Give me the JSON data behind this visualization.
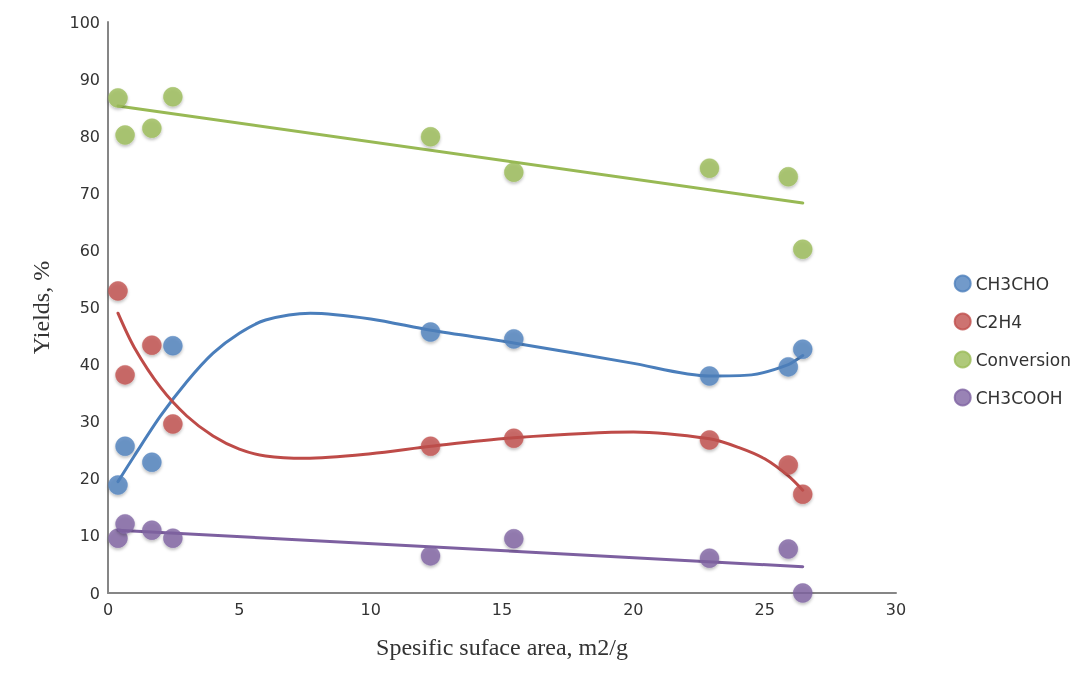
{
  "chart_data": {
    "type": "scatter",
    "xlabel": "Spesific suface area, m2/g",
    "ylabel": "Yields, %",
    "xlim": [
      0,
      30
    ],
    "xticks": [
      0,
      5,
      10,
      15,
      20,
      25,
      30
    ],
    "ylim": [
      0,
      100
    ],
    "yticks": [
      0,
      10,
      20,
      30,
      40,
      50,
      60,
      70,
      80,
      90,
      100
    ],
    "grid": false,
    "legend": "right",
    "marker": "circle",
    "series": [
      {
        "name": "CH3CHO",
        "color": "#4f81bd",
        "x": [
          0.38,
          0.65,
          1.67,
          2.47,
          12.28,
          15.45,
          22.9,
          25.9,
          26.45
        ],
        "values": [
          18.9,
          25.7,
          22.9,
          43.3,
          45.7,
          44.5,
          38.0,
          39.6,
          42.7
        ]
      },
      {
        "name": "C2H4",
        "color": "#c0504d",
        "x": [
          0.38,
          0.65,
          1.67,
          2.47,
          12.28,
          15.45,
          22.9,
          25.9,
          26.45
        ],
        "values": [
          52.9,
          38.2,
          43.4,
          29.6,
          25.7,
          27.1,
          26.8,
          22.4,
          17.3
        ]
      },
      {
        "name": "Conversion",
        "color": "#9bbb59",
        "x": [
          0.38,
          0.65,
          1.67,
          2.47,
          12.28,
          15.45,
          22.9,
          25.9,
          26.45
        ],
        "values": [
          86.7,
          80.2,
          81.4,
          86.9,
          79.9,
          73.7,
          74.4,
          72.9,
          60.2
        ]
      },
      {
        "name": "CH3COOH",
        "color": "#8064a2",
        "x": [
          0.38,
          0.65,
          1.67,
          2.47,
          12.28,
          15.45,
          22.9,
          25.9,
          26.45
        ],
        "values": [
          9.6,
          12.1,
          11.0,
          9.6,
          6.5,
          9.5,
          6.1,
          7.7,
          0
        ]
      },
      {
        "type": "line",
        "color": "#4a7ebb",
        "marker": "none",
        "x": [
          0.38,
          1,
          2,
          3,
          4,
          5,
          6,
          7.7,
          10,
          12.3,
          15.45,
          19.9,
          22.9,
          24.5,
          25.9,
          26.45
        ],
        "values": [
          19.5,
          24,
          31,
          37,
          42,
          45.5,
          47.8,
          49,
          48,
          46,
          43.8,
          40.3,
          38,
          38.2,
          40,
          41.6
        ]
      },
      {
        "type": "line",
        "color": "#be4b48",
        "marker": "none",
        "x": [
          0.38,
          1,
          2,
          3,
          4,
          5,
          6,
          7.5,
          10,
          12.3,
          15.45,
          20,
          22.9,
          24,
          25,
          25.9,
          26.45
        ],
        "values": [
          49,
          43,
          36,
          31,
          27.5,
          25.2,
          24,
          23.6,
          24.4,
          25.7,
          27.2,
          28.2,
          27,
          25.5,
          23.5,
          20.5,
          18
        ]
      },
      {
        "type": "line",
        "color": "#98b954",
        "marker": "none",
        "x": [
          0.38,
          26.45
        ],
        "values": [
          85.3,
          68.3
        ]
      },
      {
        "type": "line",
        "color": "#7d60a0",
        "marker": "none",
        "x": [
          0.38,
          26.45
        ],
        "values": [
          11.0,
          4.6
        ]
      }
    ]
  }
}
